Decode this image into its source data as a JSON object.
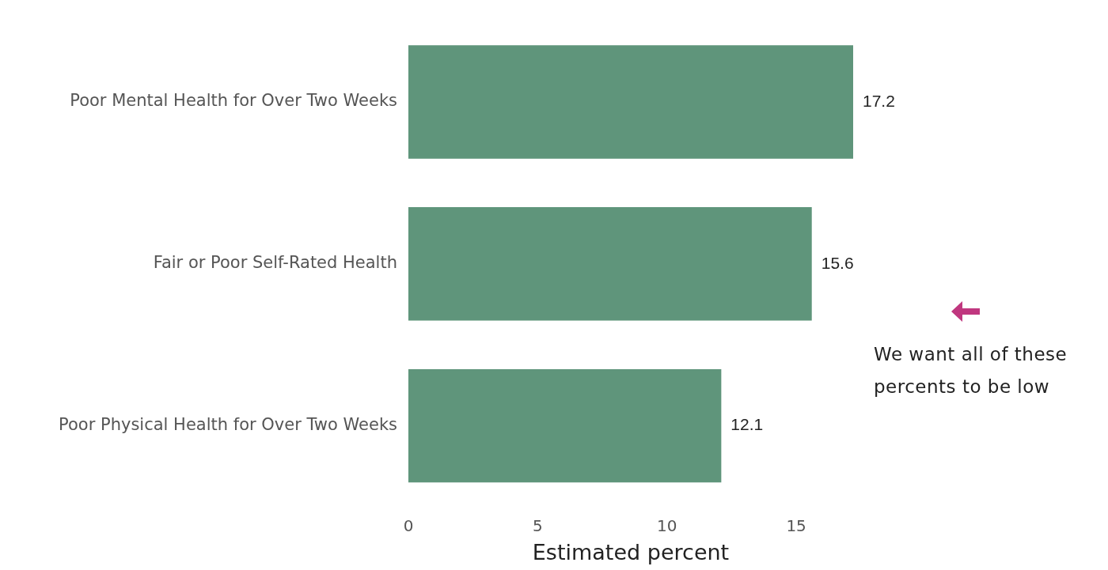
{
  "chart_data": {
    "type": "bar",
    "orientation": "horizontal",
    "xlabel": "Estimated percent",
    "categories": [
      "Poor Mental Health for Over Two Weeks",
      "Fair or Poor Self-Rated Health",
      "Poor Physical Health for Over Two Weeks"
    ],
    "values": [
      17.2,
      15.6,
      12.1
    ],
    "color": "#5f957b",
    "xlim": [
      0,
      17.2
    ],
    "xticks": [
      0,
      5,
      10,
      15
    ],
    "grid": false,
    "data_labels": true,
    "annotations": [
      "We want all of these percents to be low"
    ]
  }
}
